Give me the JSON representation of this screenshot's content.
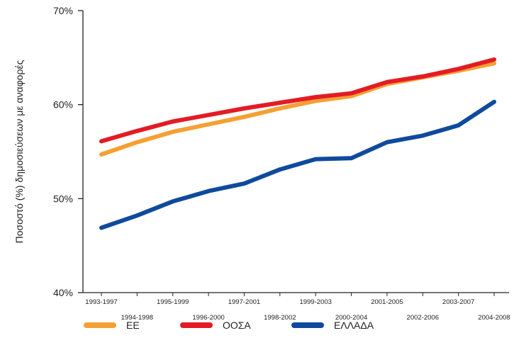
{
  "chart_data": {
    "type": "line",
    "title": "",
    "xlabel": "",
    "ylabel": "Ποσοστό (%) δημοσιεύσεων με αναφορές",
    "ylim": [
      40,
      70
    ],
    "yticks": [
      "40%",
      "50%",
      "60%",
      "70%"
    ],
    "categories": [
      "1993-1997",
      "1994-1998",
      "1995-1999",
      "1996-2000",
      "1997-2001",
      "1998-2002",
      "1999-2003",
      "2000-2004",
      "2001-2005",
      "2002-2006",
      "2003-2007",
      "2004-2008"
    ],
    "series": [
      {
        "name": "ΕΕ",
        "color": "#f5a033",
        "values": [
          54.7,
          56.0,
          57.1,
          57.9,
          58.7,
          59.6,
          60.4,
          60.9,
          62.2,
          62.9,
          63.6,
          64.4
        ]
      },
      {
        "name": "ΟΟΣΑ",
        "color": "#e41b24",
        "values": [
          56.1,
          57.2,
          58.2,
          58.9,
          59.6,
          60.2,
          60.8,
          61.2,
          62.4,
          63.0,
          63.8,
          64.8
        ]
      },
      {
        "name": "ΕΛΛΑΔΑ",
        "color": "#0f4a9c",
        "values": [
          46.9,
          48.2,
          49.7,
          50.8,
          51.6,
          53.1,
          54.2,
          54.3,
          56.0,
          56.7,
          57.8,
          60.3
        ]
      }
    ],
    "grid": false,
    "legend": "bottom"
  }
}
